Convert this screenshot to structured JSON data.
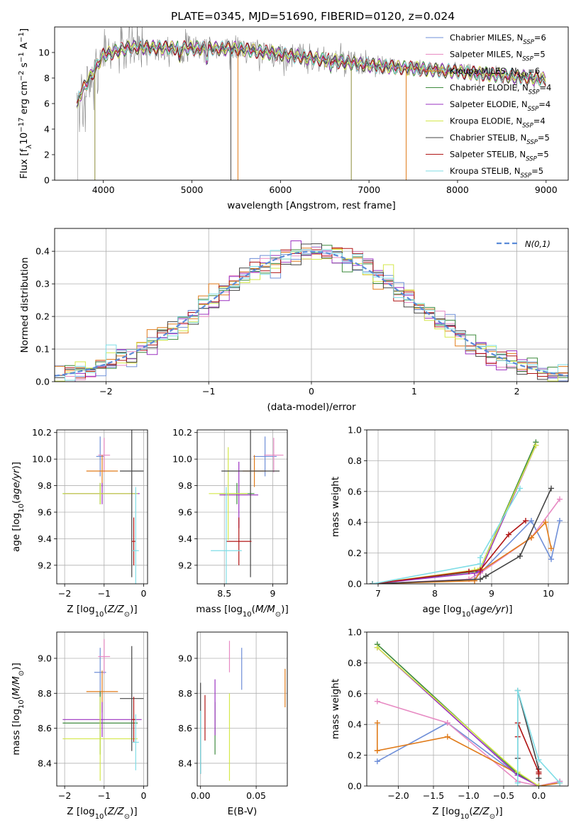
{
  "figure": {
    "title": "PLATE=0345, MJD=51690, FIBERID=0120, z=0.024"
  },
  "models": [
    {
      "label": "Chabrier MILES, N",
      "sub": "SSP",
      "suffix": "=6",
      "color": "#6f8fd8"
    },
    {
      "label": "Salpeter MILES, N",
      "sub": "SSP",
      "suffix": "=5",
      "color": "#e78ac3"
    },
    {
      "label": "Kroupa MILES, N",
      "sub": "SSP",
      "suffix": "=6",
      "color": "#e07b1a"
    },
    {
      "label": "Chabrier ELODIE, N",
      "sub": "SSP",
      "suffix": "=4",
      "color": "#3d8a3d"
    },
    {
      "label": "Salpeter ELODIE, N",
      "sub": "SSP",
      "suffix": "=4",
      "color": "#9b30c0"
    },
    {
      "label": "Kroupa ELODIE, N",
      "sub": "SSP",
      "suffix": "=4",
      "color": "#d4e84a"
    },
    {
      "label": "Chabrier STELIB, N",
      "sub": "SSP",
      "suffix": "=5",
      "color": "#444444"
    },
    {
      "label": "Salpeter STELIB, N",
      "sub": "SSP",
      "suffix": "=5",
      "color": "#b01515"
    },
    {
      "label": "Kroupa STELIB, N",
      "sub": "SSP",
      "suffix": "=5",
      "color": "#7fdde6"
    }
  ],
  "chart_data": [
    {
      "id": "spectrum",
      "type": "line",
      "xlabel": "wavelength [Angstrom, rest frame]",
      "ylabel": "Flux [f",
      "xlim": [
        3450,
        9250
      ],
      "ylim": [
        0,
        12
      ],
      "xticks": [
        4000,
        5000,
        6000,
        7000,
        8000,
        9000
      ],
      "yticks": [
        0,
        2,
        4,
        6,
        8,
        10
      ],
      "x_range": [
        3700,
        9000
      ]
    },
    {
      "id": "residuals",
      "type": "line",
      "xlabel": "(data-model)/error",
      "ylabel": "Normed distribution",
      "xlim": [
        -2.5,
        2.5
      ],
      "ylim": [
        0,
        0.47
      ],
      "xticks": [
        -2,
        -1,
        0,
        1,
        2
      ],
      "yticks": [
        0.0,
        0.1,
        0.2,
        0.3,
        0.4
      ],
      "gaussian_label": "N(0,1)",
      "gaussian_color": "#5b8bd8"
    },
    {
      "id": "age-vs-z",
      "type": "scatter",
      "xlabel": "Z [log",
      "ylabel": "age  [log",
      "xlim": [
        -2.2,
        0.1
      ],
      "ylim": [
        9.06,
        10.22
      ],
      "xticks": [
        -2,
        -1,
        0
      ],
      "yticks": [
        9.2,
        9.4,
        9.6,
        9.8,
        10.0,
        10.2
      ],
      "points": [
        {
          "m": 0,
          "x": -1.1,
          "xerr": 0.1,
          "y": 10.02,
          "yerr": 0.15
        },
        {
          "m": 1,
          "x": -1.0,
          "xerr": 0.15,
          "y": 10.03,
          "yerr": 0.13
        },
        {
          "m": 2,
          "x": -1.05,
          "xerr": 0.4,
          "y": 9.91,
          "yerr": 0.12
        },
        {
          "m": 3,
          "x": -1.1,
          "xerr": 0.95,
          "y": 9.74,
          "yerr": 0.08
        },
        {
          "m": 4,
          "x": -1.05,
          "xerr": 0.95,
          "y": 9.74,
          "yerr": 0.08
        },
        {
          "m": 5,
          "x": -1.1,
          "xerr": 0.95,
          "y": 9.74,
          "yerr": 0.08
        },
        {
          "m": 6,
          "x": -0.3,
          "xerr": 0.3,
          "y": 9.91,
          "yerr": 0.8
        },
        {
          "m": 7,
          "x": -0.25,
          "xerr": 0.05,
          "y": 9.38,
          "yerr": 0.18
        },
        {
          "m": 8,
          "x": -0.2,
          "xerr": 0.08,
          "y": 9.31,
          "yerr": 0.48
        }
      ]
    },
    {
      "id": "age-vs-mass",
      "type": "scatter",
      "xlabel": "mass [log",
      "ylabel": "",
      "xlim": [
        8.22,
        9.15
      ],
      "ylim": [
        9.06,
        10.22
      ],
      "xticks": [
        8.5,
        9.0
      ],
      "yticks": [
        9.2,
        9.4,
        9.6,
        9.8,
        10.0,
        10.2
      ],
      "points": [
        {
          "m": 0,
          "x": 8.92,
          "xerr": 0.12,
          "y": 10.02,
          "yerr": 0.15
        },
        {
          "m": 1,
          "x": 9.01,
          "xerr": 0.1,
          "y": 10.03,
          "yerr": 0.13
        },
        {
          "m": 2,
          "x": 8.81,
          "xerr": 0.12,
          "y": 9.91,
          "yerr": 0.12
        },
        {
          "m": 3,
          "x": 8.63,
          "xerr": 0.18,
          "y": 9.74,
          "yerr": 0.08
        },
        {
          "m": 4,
          "x": 8.65,
          "xerr": 0.2,
          "y": 9.73,
          "yerr": 0.25
        },
        {
          "m": 5,
          "x": 8.54,
          "xerr": 0.2,
          "y": 9.74,
          "yerr": 0.35
        },
        {
          "m": 6,
          "x": 8.77,
          "xerr": 0.3,
          "y": 9.91,
          "yerr": 0.8
        },
        {
          "m": 7,
          "x": 8.65,
          "xerr": 0.13,
          "y": 9.38,
          "yerr": 0.18
        },
        {
          "m": 8,
          "x": 8.52,
          "xerr": 0.16,
          "y": 9.31,
          "yerr": 0.48
        }
      ]
    },
    {
      "id": "weight-vs-age",
      "type": "line",
      "xlabel": "age  [log",
      "ylabel": "mass weight",
      "xlim": [
        6.8,
        10.35
      ],
      "ylim": [
        0,
        1.0
      ],
      "xticks": [
        7,
        8,
        9,
        10
      ],
      "yticks": [
        0.0,
        0.2,
        0.4,
        0.6,
        0.8,
        1.0
      ],
      "series": [
        {
          "m": 0,
          "x": [
            6.9,
            8.7,
            8.8,
            9.7,
            10.05,
            10.2
          ],
          "y": [
            0.0,
            0.03,
            0.07,
            0.41,
            0.16,
            0.41
          ]
        },
        {
          "m": 1,
          "x": [
            6.9,
            8.6,
            8.8,
            9.7,
            10.2
          ],
          "y": [
            0.0,
            0.03,
            0.07,
            0.3,
            0.55
          ]
        },
        {
          "m": 2,
          "x": [
            6.9,
            8.7,
            8.8,
            9.7,
            9.95,
            10.05
          ],
          "y": [
            0.0,
            0.02,
            0.08,
            0.3,
            0.4,
            0.23
          ]
        },
        {
          "m": 3,
          "x": [
            6.9,
            8.7,
            8.8,
            9.78
          ],
          "y": [
            0.0,
            0.08,
            0.1,
            0.92
          ]
        },
        {
          "m": 4,
          "x": [
            6.9,
            8.7,
            8.8,
            9.78
          ],
          "y": [
            0.0,
            0.07,
            0.08,
            0.9
          ]
        },
        {
          "m": 5,
          "x": [
            6.9,
            8.7,
            8.8,
            9.78
          ],
          "y": [
            0.0,
            0.09,
            0.1,
            0.9
          ]
        },
        {
          "m": 6,
          "x": [
            6.9,
            8.8,
            8.9,
            9.5,
            10.05
          ],
          "y": [
            0.0,
            0.03,
            0.05,
            0.18,
            0.62
          ]
        },
        {
          "m": 7,
          "x": [
            6.9,
            8.6,
            8.8,
            9.3,
            9.6
          ],
          "y": [
            0.0,
            0.08,
            0.09,
            0.32,
            0.41
          ]
        },
        {
          "m": 8,
          "x": [
            6.9,
            8.8,
            8.8,
            9.5
          ],
          "y": [
            0.0,
            0.13,
            0.17,
            0.62
          ]
        }
      ]
    },
    {
      "id": "mass-vs-z",
      "type": "scatter",
      "xlabel": "Z [log",
      "ylabel": "mass [log",
      "xlim": [
        -2.2,
        0.1
      ],
      "ylim": [
        8.27,
        9.15
      ],
      "xticks": [
        -2,
        -1,
        0
      ],
      "yticks": [
        8.4,
        8.6,
        8.8,
        9.0
      ],
      "points": [
        {
          "m": 0,
          "x": -1.1,
          "xerr": 0.15,
          "y": 8.92,
          "yerr": 0.14
        },
        {
          "m": 1,
          "x": -1.0,
          "xerr": 0.15,
          "y": 9.01,
          "yerr": 0.1
        },
        {
          "m": 2,
          "x": -1.05,
          "xerr": 0.4,
          "y": 8.81,
          "yerr": 0.12
        },
        {
          "m": 3,
          "x": -1.1,
          "xerr": 0.95,
          "y": 8.63,
          "yerr": 0.18
        },
        {
          "m": 4,
          "x": -1.05,
          "xerr": 1.0,
          "y": 8.65,
          "yerr": 0.1
        },
        {
          "m": 5,
          "x": -1.1,
          "xerr": 0.95,
          "y": 8.54,
          "yerr": 0.24
        },
        {
          "m": 6,
          "x": -0.3,
          "xerr": 0.3,
          "y": 8.77,
          "yerr": 0.3
        },
        {
          "m": 7,
          "x": -0.25,
          "xerr": 0.05,
          "y": 8.65,
          "yerr": 0.13
        },
        {
          "m": 8,
          "x": -0.2,
          "xerr": 0.08,
          "y": 8.52,
          "yerr": 0.16
        }
      ]
    },
    {
      "id": "mass-vs-ebv",
      "type": "scatter",
      "xlabel": "E(B-V)",
      "ylabel": "",
      "xlim": [
        -0.003,
        0.078
      ],
      "ylim": [
        8.27,
        9.15
      ],
      "xticks": [
        0.0,
        0.05
      ],
      "xtick_labels": [
        "0.00",
        "0.05"
      ],
      "yticks": [
        8.4,
        8.6,
        8.8,
        9.0
      ],
      "points": [
        {
          "m": 0,
          "x": 0.037,
          "y": 8.94,
          "yerr": 0.12
        },
        {
          "m": 1,
          "x": 0.026,
          "y": 9.01,
          "yerr": 0.09
        },
        {
          "m": 2,
          "x": 0.076,
          "y": 8.83,
          "yerr": 0.11
        },
        {
          "m": 3,
          "x": 0.013,
          "y": 8.6,
          "yerr": 0.15
        },
        {
          "m": 4,
          "x": 0.013,
          "y": 8.72,
          "yerr": 0.16
        },
        {
          "m": 5,
          "x": 0.026,
          "y": 8.55,
          "yerr": 0.25
        },
        {
          "m": 6,
          "x": 0.0,
          "y": 8.6,
          "yerr": 0.26
        },
        {
          "m": 7,
          "x": 0.004,
          "y": 8.66,
          "yerr": 0.13
        },
        {
          "m": 8,
          "x": 0.0,
          "y": 8.52,
          "yerr": 0.18
        }
      ]
    },
    {
      "id": "weight-vs-z",
      "type": "line",
      "xlabel": "Z [log",
      "ylabel": "mass weight",
      "xlim": [
        -2.45,
        0.42
      ],
      "ylim": [
        0,
        1.0
      ],
      "xticks": [
        -2.0,
        -1.5,
        -1.0,
        -0.5,
        0.0
      ],
      "xtick_labels": [
        "−2.0",
        "−1.5",
        "−1.0",
        "−0.5",
        "0.0"
      ],
      "yticks": [
        0.0,
        0.2,
        0.4,
        0.6,
        0.8,
        1.0
      ],
      "series": [
        {
          "m": 0,
          "x": [
            -2.3,
            -1.3,
            -0.3,
            0.0,
            0.3
          ],
          "y": [
            0.16,
            0.41,
            0.07,
            0.0,
            0.03
          ]
        },
        {
          "m": 1,
          "x": [
            -2.3,
            -1.3,
            -0.3,
            0.0,
            0.3
          ],
          "y": [
            0.55,
            0.41,
            0.03,
            0.0,
            0.03
          ]
        },
        {
          "m": 2,
          "x": [
            -2.3,
            -2.3,
            -2.3,
            -1.3,
            -0.3,
            0.0,
            0.3
          ],
          "y": [
            0.41,
            0.23,
            0.23,
            0.32,
            0.08,
            0.0,
            0.02
          ]
        },
        {
          "m": 3,
          "x": [
            -2.3,
            -0.3,
            0.0
          ],
          "y": [
            0.92,
            0.08,
            0.0
          ]
        },
        {
          "m": 4,
          "x": [
            -2.3,
            -0.3,
            0.0
          ],
          "y": [
            0.9,
            0.07,
            0.0
          ]
        },
        {
          "m": 5,
          "x": [
            -2.3,
            -0.3,
            0.0
          ],
          "y": [
            0.9,
            0.09,
            0.0
          ]
        },
        {
          "m": 6,
          "x": [
            -0.3,
            -0.3,
            0.0,
            0.0
          ],
          "y": [
            0.18,
            0.62,
            0.11,
            0.05
          ]
        },
        {
          "m": 7,
          "x": [
            -0.3,
            -0.3,
            0.0,
            0.0
          ],
          "y": [
            0.32,
            0.41,
            0.09,
            0.08
          ]
        },
        {
          "m": 8,
          "x": [
            -0.3,
            -0.3,
            0.0,
            0.3
          ],
          "y": [
            0.02,
            0.62,
            0.17,
            0.02
          ]
        }
      ]
    }
  ]
}
